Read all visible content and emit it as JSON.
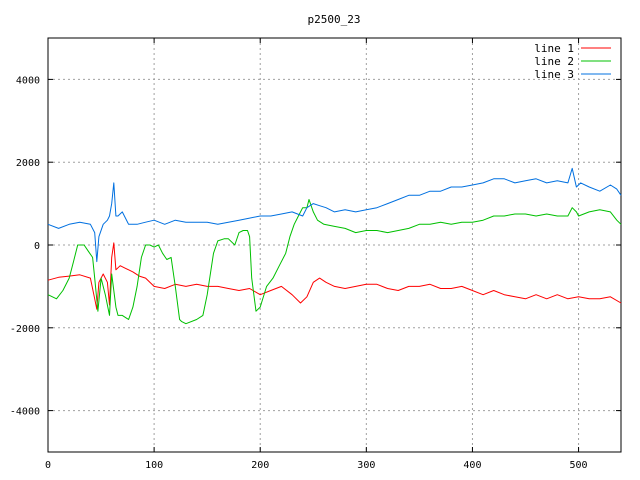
{
  "chart_data": {
    "type": "line",
    "title": "p2500_23",
    "xlabel": "",
    "ylabel": "",
    "xlim": [
      0,
      540
    ],
    "ylim": [
      -5000,
      5000
    ],
    "xticks": [
      0,
      100,
      200,
      300,
      400,
      500
    ],
    "yticks": [
      -4000,
      -2000,
      0,
      2000,
      4000
    ],
    "grid": true,
    "legend_position": "top-right",
    "series": [
      {
        "name": "line 1",
        "color": "#ff0000",
        "x": [
          0,
          10,
          20,
          30,
          40,
          44,
          46,
          48,
          52,
          56,
          58,
          60,
          62,
          64,
          68,
          72,
          76,
          80,
          86,
          92,
          100,
          110,
          120,
          130,
          140,
          150,
          160,
          170,
          180,
          190,
          200,
          210,
          220,
          230,
          238,
          244,
          250,
          256,
          262,
          270,
          280,
          290,
          300,
          310,
          320,
          330,
          340,
          350,
          360,
          370,
          380,
          390,
          400,
          410,
          420,
          430,
          440,
          450,
          460,
          470,
          480,
          490,
          500,
          510,
          520,
          530,
          540
        ],
        "values": [
          -850,
          -780,
          -750,
          -720,
          -800,
          -1300,
          -1550,
          -900,
          -700,
          -900,
          -1450,
          -300,
          50,
          -600,
          -500,
          -550,
          -600,
          -650,
          -750,
          -800,
          -1000,
          -1050,
          -950,
          -1000,
          -950,
          -1000,
          -1000,
          -1050,
          -1100,
          -1050,
          -1200,
          -1100,
          -1000,
          -1200,
          -1400,
          -1250,
          -900,
          -800,
          -900,
          -1000,
          -1050,
          -1000,
          -950,
          -950,
          -1050,
          -1100,
          -1000,
          -1000,
          -950,
          -1050,
          -1050,
          -1000,
          -1100,
          -1200,
          -1100,
          -1200,
          -1250,
          -1300,
          -1200,
          -1300,
          -1200,
          -1300,
          -1250,
          -1300,
          -1300,
          -1250,
          -1400
        ]
      },
      {
        "name": "line 2",
        "color": "#00c000",
        "x": [
          0,
          8,
          14,
          20,
          24,
          28,
          34,
          38,
          42,
          44,
          47,
          50,
          54,
          58,
          60,
          62,
          64,
          66,
          70,
          76,
          80,
          84,
          88,
          92,
          96,
          100,
          104,
          108,
          112,
          116,
          120,
          124,
          126,
          130,
          140,
          146,
          150,
          156,
          160,
          166,
          170,
          176,
          180,
          184,
          188,
          190,
          192,
          196,
          200,
          206,
          212,
          218,
          224,
          228,
          232,
          236,
          240,
          244,
          246,
          250,
          254,
          260,
          270,
          280,
          290,
          300,
          310,
          320,
          330,
          340,
          350,
          360,
          370,
          380,
          390,
          400,
          410,
          420,
          430,
          440,
          450,
          460,
          470,
          480,
          490,
          494,
          498,
          500,
          510,
          520,
          530,
          536,
          540
        ],
        "values": [
          -1200,
          -1300,
          -1100,
          -800,
          -400,
          0,
          0,
          -150,
          -300,
          -800,
          -1600,
          -800,
          -1200,
          -1700,
          -700,
          -1100,
          -1500,
          -1700,
          -1700,
          -1800,
          -1500,
          -1000,
          -300,
          0,
          0,
          -50,
          0,
          -200,
          -350,
          -300,
          -1000,
          -1800,
          -1850,
          -1900,
          -1800,
          -1700,
          -1200,
          -200,
          100,
          150,
          150,
          0,
          300,
          350,
          350,
          200,
          -800,
          -1600,
          -1500,
          -1000,
          -800,
          -500,
          -200,
          200,
          500,
          700,
          900,
          900,
          1100,
          800,
          600,
          500,
          450,
          400,
          300,
          350,
          350,
          300,
          350,
          400,
          500,
          500,
          550,
          500,
          550,
          550,
          600,
          700,
          700,
          750,
          750,
          700,
          750,
          700,
          700,
          900,
          800,
          700,
          800,
          850,
          800,
          600,
          500
        ]
      },
      {
        "name": "line 3",
        "color": "#0070e0",
        "x": [
          0,
          10,
          20,
          30,
          40,
          44,
          46,
          48,
          52,
          56,
          58,
          60,
          62,
          64,
          66,
          70,
          76,
          84,
          92,
          100,
          110,
          120,
          130,
          140,
          150,
          160,
          170,
          180,
          190,
          200,
          210,
          220,
          230,
          240,
          244,
          250,
          256,
          262,
          270,
          280,
          290,
          300,
          310,
          320,
          330,
          340,
          350,
          360,
          370,
          380,
          390,
          400,
          410,
          420,
          430,
          440,
          450,
          460,
          470,
          480,
          490,
          494,
          498,
          502,
          510,
          520,
          530,
          536,
          540
        ],
        "values": [
          500,
          400,
          500,
          550,
          500,
          300,
          -400,
          200,
          500,
          600,
          700,
          1000,
          1500,
          700,
          700,
          800,
          500,
          500,
          550,
          600,
          500,
          600,
          550,
          550,
          550,
          500,
          550,
          600,
          650,
          700,
          700,
          750,
          800,
          700,
          900,
          1000,
          950,
          900,
          800,
          850,
          800,
          850,
          900,
          1000,
          1100,
          1200,
          1200,
          1300,
          1300,
          1400,
          1400,
          1450,
          1500,
          1600,
          1600,
          1500,
          1550,
          1600,
          1500,
          1550,
          1500,
          1850,
          1400,
          1500,
          1400,
          1300,
          1450,
          1350,
          1200
        ]
      }
    ]
  }
}
